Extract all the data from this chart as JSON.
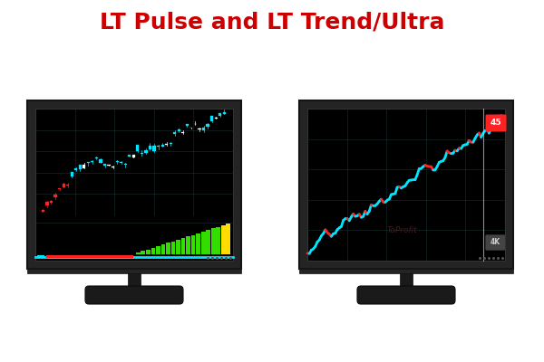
{
  "title": "LT Pulse and LT Trend/Ultra",
  "title_color": "#cc0000",
  "title_fontsize": 18,
  "bg_color": "#ffffff",
  "monitor_bg": "#000000",
  "cyan_color": "#00e5ff",
  "red_color": "#ff2222",
  "white_color": "#ffffff",
  "green_color": "#33dd00",
  "yellow_color": "#ffdd00",
  "grid_color": "#1a3030",
  "monitor_dark": "#1e1e1e",
  "monitor_darker": "#141414",
  "stand_color": "#1a1a1a",
  "bezel_color": "#242424"
}
